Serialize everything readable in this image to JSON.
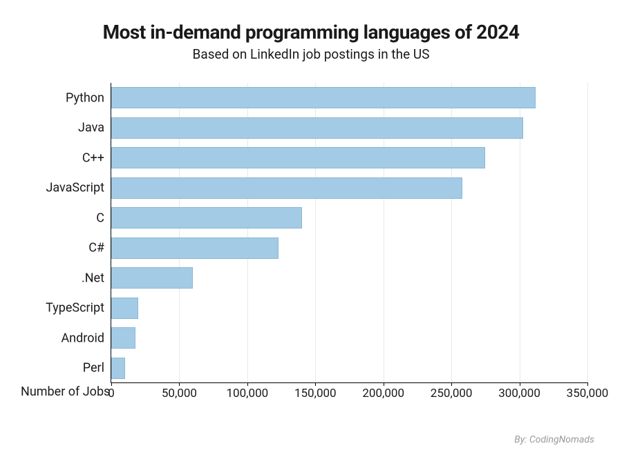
{
  "title": {
    "text": "Most in-demand programming languages of 2024",
    "fontsize": 28,
    "fontweight": 700,
    "color": "#1a1a1a"
  },
  "subtitle": {
    "text": "Based on LinkedIn job postings in the US",
    "fontsize": 19,
    "color": "#1a1a1a"
  },
  "chart": {
    "type": "bar-horizontal",
    "categories": [
      "Python",
      "Java",
      "C++",
      "JavaScript",
      "C",
      "C#",
      ".Net",
      "TypeScript",
      "Android",
      "Perl"
    ],
    "values": [
      312000,
      303000,
      275000,
      258000,
      140000,
      123000,
      60000,
      20000,
      18000,
      10000
    ],
    "bar_color": "#a3cbe5",
    "bar_border_color": "#8cb8d4",
    "bar_height_ratio": 0.72,
    "xlim": [
      0,
      350000
    ],
    "xtick_step": 50000,
    "xtick_labels": [
      "0",
      "50,000",
      "100,000",
      "150,000",
      "200,000",
      "250,000",
      "300,000",
      "350,000"
    ],
    "xlabel": "Number of Jobs",
    "grid_color": "#e8e8e8",
    "label_fontsize": 18,
    "tick_fontsize": 17,
    "background_color": "#ffffff"
  },
  "credit": {
    "text": "By: CodingNomads",
    "color": "#9a9a9a",
    "fontsize": 14
  }
}
